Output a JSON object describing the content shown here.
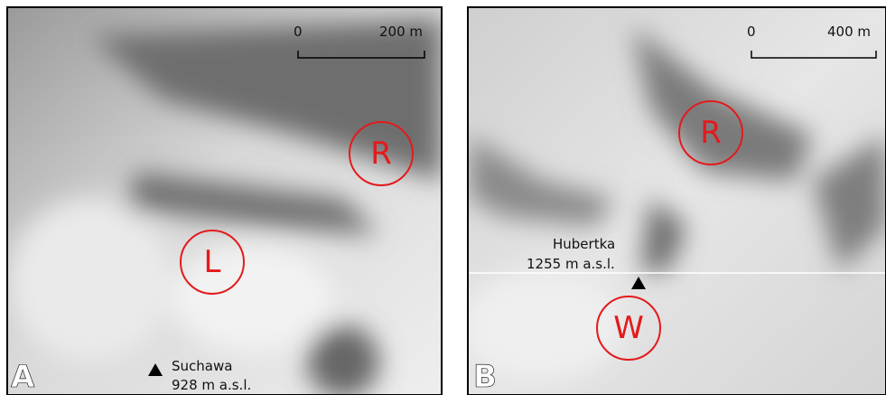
{
  "panels": [
    {
      "label": "A",
      "scale": {
        "start": "0",
        "end": "200 m"
      },
      "circles": [
        "R",
        "L"
      ],
      "peak": {
        "name": "Suchawa",
        "elevation": "928 m a.s.l."
      }
    },
    {
      "label": "B",
      "scale": {
        "start": "0",
        "end": "400 m"
      },
      "circles": [
        "R",
        "W"
      ],
      "peak": {
        "name": "Hubertka",
        "elevation": "1255 m a.s.l."
      }
    }
  ]
}
